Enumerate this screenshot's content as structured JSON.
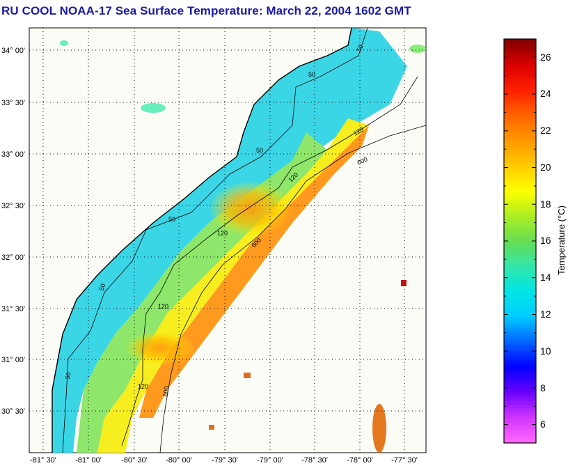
{
  "title": "RU COOL  NOAA-17  Sea Surface Temperature:  March 22, 2004 1602 GMT",
  "map": {
    "lat_labels": [
      "34° 00'",
      "33° 30'",
      "33° 00'",
      "32° 30'",
      "32° 00'",
      "31° 30'",
      "31° 00'",
      "30° 30'"
    ],
    "lon_labels": [
      "-81° 30'",
      "-81° 00'",
      "-80° 30'",
      "-80° 00'",
      "-79° 30'",
      "-79° 00'",
      "-78° 30'",
      "-78° 00'",
      "-77° 30'"
    ],
    "lat_range": [
      30.25,
      34.15
    ],
    "lon_range": [
      -81.6,
      -77.4
    ],
    "contour_labels": [
      "50",
      "50",
      "50",
      "50",
      "50",
      "50",
      "120",
      "120",
      "120",
      "120",
      "120",
      "600",
      "600",
      "600"
    ]
  },
  "colorbar": {
    "label": "Temperature (°C)",
    "ticks": [
      "26",
      "24",
      "22",
      "20",
      "18",
      "16",
      "14",
      "12",
      "10",
      "8",
      "6"
    ],
    "range": [
      5,
      27
    ],
    "colors": [
      "#ff66ff",
      "#cc33ff",
      "#6600ff",
      "#0000ff",
      "#0066ff",
      "#00ccff",
      "#00e6e6",
      "#33e6aa",
      "#66dd55",
      "#aaee22",
      "#ffff00",
      "#ffcc00",
      "#ff9900",
      "#ff6600",
      "#ff2200",
      "#dd0000",
      "#880000"
    ]
  }
}
